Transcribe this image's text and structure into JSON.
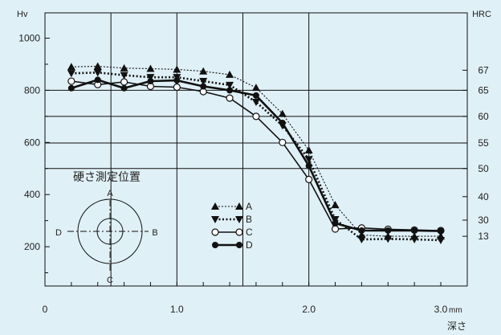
{
  "chart_data": {
    "type": "line",
    "ylabel_left": "Hv",
    "ylabel_right": "HRC",
    "xlabel": "深さ",
    "x_unit": "mm",
    "xlim": [
      0,
      3.0
    ],
    "ylim": [
      0,
      1100
    ],
    "x_ticks": [
      {
        "value": 0,
        "label": "0"
      },
      {
        "value": 1.0,
        "label": "1.0"
      },
      {
        "value": 2.0,
        "label": "2.0"
      },
      {
        "value": 3.0,
        "label": "3.0"
      }
    ],
    "y_ticks_left": [
      {
        "value": 200,
        "label": "200"
      },
      {
        "value": 400,
        "label": "400"
      },
      {
        "value": 600,
        "label": "600"
      },
      {
        "value": 800,
        "label": "800"
      },
      {
        "value": 1000,
        "label": "1000"
      }
    ],
    "y_ticks_right": [
      {
        "hv": 240,
        "label": "13"
      },
      {
        "hv": 302,
        "label": "30"
      },
      {
        "hv": 392,
        "label": "40"
      },
      {
        "hv": 500,
        "label": "50"
      },
      {
        "hv": 598,
        "label": "55"
      },
      {
        "hv": 700,
        "label": "60"
      },
      {
        "hv": 800,
        "label": "65"
      },
      {
        "hv": 877,
        "label": "67"
      }
    ],
    "h_gridlines": [
      500,
      598,
      700,
      800
    ],
    "v_gridlines": [
      0.5,
      1.0,
      1.5,
      2.0
    ],
    "x": [
      0.2,
      0.4,
      0.6,
      0.8,
      1.0,
      1.2,
      1.4,
      1.6,
      1.8,
      2.0,
      2.2,
      2.4,
      2.6,
      2.8,
      3.0
    ],
    "series": [
      {
        "name": "A",
        "marker": "triangle-up",
        "line": "dotted",
        "color": "#111111",
        "values": [
          890,
          892,
          885,
          883,
          880,
          873,
          860,
          810,
          710,
          570,
          360,
          245,
          240,
          240,
          240
        ]
      },
      {
        "name": "B",
        "marker": "triangle-down",
        "line": "dotted-bold",
        "color": "#111111",
        "values": [
          865,
          868,
          858,
          850,
          850,
          835,
          820,
          755,
          665,
          535,
          305,
          228,
          230,
          228,
          225
        ]
      },
      {
        "name": "C",
        "marker": "circle-open",
        "line": "solid",
        "color": "#111111",
        "values": [
          835,
          822,
          832,
          815,
          812,
          795,
          770,
          700,
          600,
          458,
          268,
          272,
          267,
          264,
          262
        ]
      },
      {
        "name": "D",
        "marker": "circle-filled",
        "line": "solid-bold",
        "color": "#111111",
        "values": [
          808,
          840,
          808,
          835,
          838,
          815,
          800,
          780,
          675,
          510,
          290,
          262,
          262,
          262,
          260
        ]
      }
    ],
    "legend_position": "middle-left"
  },
  "inset": {
    "title": "硬さ測定位置",
    "labels": {
      "top": "A",
      "right": "B",
      "bottom": "C",
      "left": "D"
    }
  },
  "colors": {
    "background": "#dff0f6",
    "lines": "#111111"
  }
}
